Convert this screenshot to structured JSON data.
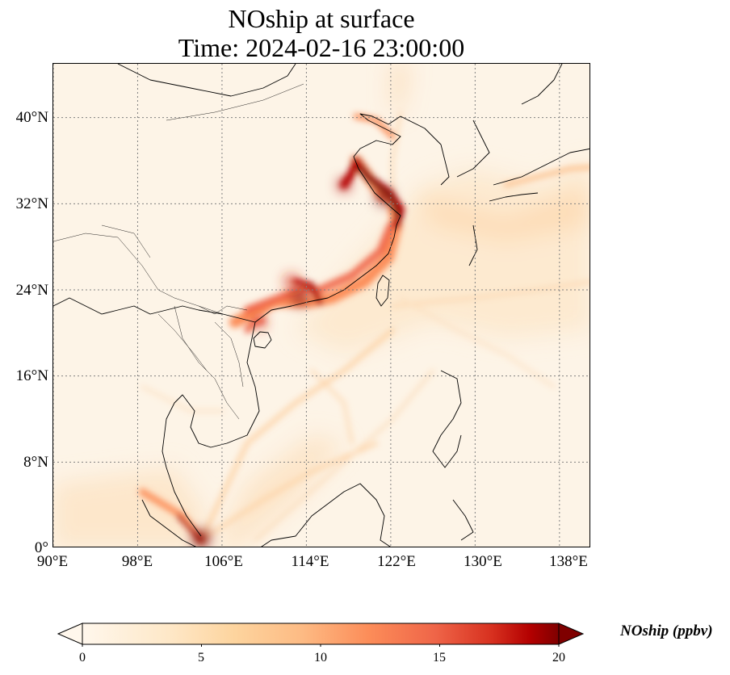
{
  "title": {
    "line1": "NOship at surface",
    "line2": "Time: 2024-02-16 23:00:00"
  },
  "map": {
    "lon_range": [
      90,
      141
    ],
    "lat_range": [
      0,
      45
    ],
    "gridlines": "dotted gray",
    "lat_ticks": [
      "40°N",
      "32°N",
      "24°N",
      "16°N",
      "8°N",
      "0°"
    ],
    "lon_ticks": [
      "90°E",
      "98°E",
      "106°E",
      "114°E",
      "122°E",
      "130°E",
      "138°E"
    ],
    "colormap": "OrRd",
    "colors": {
      "background": "#fdf4e7",
      "low": "#fef0d9",
      "mid": "#fc8d59",
      "high": "#7f0000",
      "coastline": "#000000"
    }
  },
  "colorbar": {
    "label": "NOship (ppbv)",
    "range": [
      0,
      20
    ],
    "extend": "both",
    "ticks": [
      "0",
      "5",
      "10",
      "15",
      "20"
    ]
  }
}
